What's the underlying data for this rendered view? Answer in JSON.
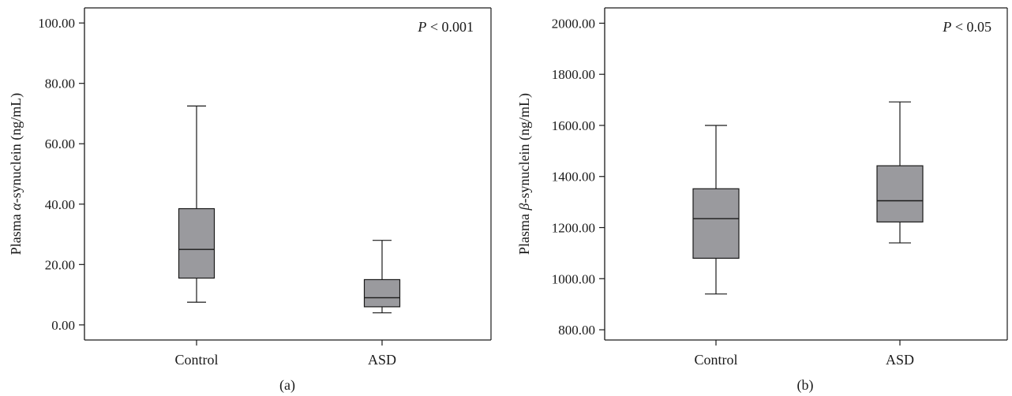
{
  "chart_data": [
    {
      "type": "boxplot",
      "panel_label": "(a)",
      "ylabel_prefix": "Plasma ",
      "ylabel_symbol": "α",
      "ylabel_suffix": "-synuclein (ng/mL)",
      "annotation_p": "P",
      "annotation_rest": " < 0.001",
      "ylim": [
        -5,
        105
      ],
      "yticks": [
        0,
        20,
        40,
        60,
        80,
        100
      ],
      "ytick_labels": [
        "0.00",
        "20.00",
        "40.00",
        "60.00",
        "80.00",
        "100.00"
      ],
      "categories": [
        "Control",
        "ASD"
      ],
      "boxes": [
        {
          "category": "Control",
          "min": 7.5,
          "q1": 15.5,
          "median": 25,
          "q3": 38.5,
          "max": 72.5
        },
        {
          "category": "ASD",
          "min": 4,
          "q1": 6,
          "median": 9,
          "q3": 15,
          "max": 28
        }
      ],
      "box_color": "#9a9a9e"
    },
    {
      "type": "boxplot",
      "panel_label": "(b)",
      "ylabel_prefix": "Plasma ",
      "ylabel_symbol": "β",
      "ylabel_suffix": "-synuclein (ng/mL)",
      "annotation_p": "P",
      "annotation_rest": " < 0.05",
      "ylim": [
        760,
        2060
      ],
      "yticks": [
        800,
        1000,
        1200,
        1400,
        1600,
        1800,
        2000
      ],
      "ytick_labels": [
        "800.00",
        "1000.00",
        "1200.00",
        "1400.00",
        "1600.00",
        "1800.00",
        "2000.00"
      ],
      "categories": [
        "Control",
        "ASD"
      ],
      "boxes": [
        {
          "category": "Control",
          "min": 940,
          "q1": 1080,
          "median": 1235,
          "q3": 1352,
          "max": 1600
        },
        {
          "category": "ASD",
          "min": 1140,
          "q1": 1222,
          "median": 1305,
          "q3": 1442,
          "max": 1692
        }
      ],
      "box_color": "#9a9a9e"
    }
  ]
}
